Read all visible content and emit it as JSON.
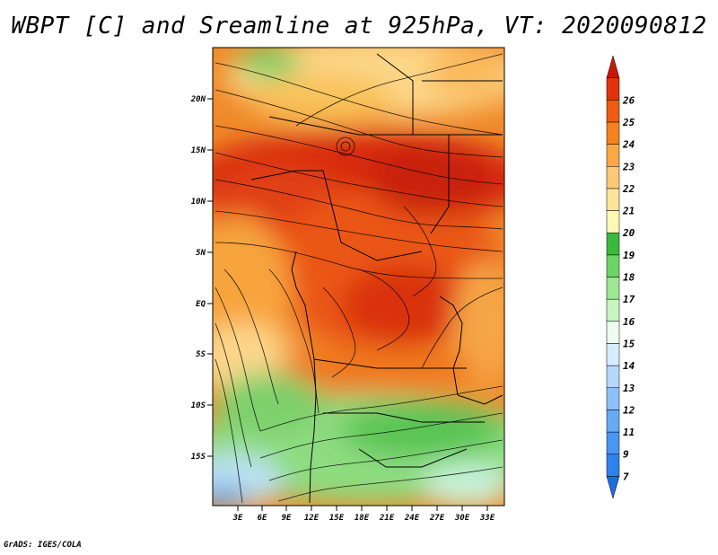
{
  "title": "WBPT [C] and Sreamline at 925hPa, VT: 2020090812",
  "credit": "GrADS: IGES/COLA",
  "map": {
    "lat_labels": [
      "20N",
      "15N",
      "10N",
      "5N",
      "EQ",
      "5S",
      "10S",
      "15S"
    ],
    "lon_labels": [
      "3E",
      "6E",
      "9E",
      "12E",
      "15E",
      "18E",
      "21E",
      "24E",
      "27E",
      "30E",
      "33E"
    ]
  },
  "colorbar": {
    "levels": [
      "7",
      "9",
      "11",
      "12",
      "13",
      "14",
      "15",
      "16",
      "17",
      "18",
      "19",
      "20",
      "21",
      "22",
      "23",
      "24",
      "25",
      "26"
    ],
    "colors": [
      "#1e6ee0",
      "#2e82ec",
      "#4a96f0",
      "#66aaf4",
      "#8cc0f8",
      "#b4d8fa",
      "#d6ecfc",
      "#eefcf0",
      "#c8f4c0",
      "#9ce694",
      "#6cd464",
      "#3cb83c",
      "#fff7b6",
      "#fde49a",
      "#fcc878",
      "#faa844",
      "#f6821e",
      "#f05a14",
      "#e0320e",
      "#c81808"
    ]
  }
}
